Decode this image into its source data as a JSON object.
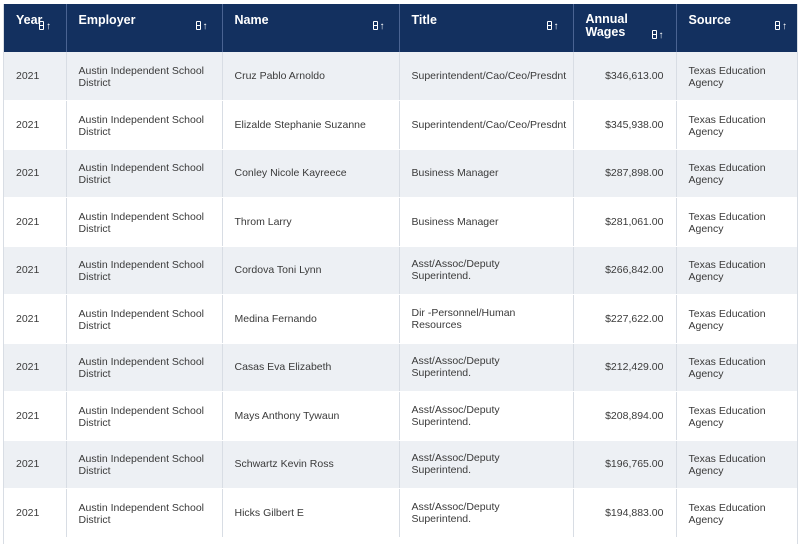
{
  "table": {
    "columns": {
      "year": "Year",
      "employer": "Employer",
      "name": "Name",
      "title": "Title",
      "wages": "Annual Wages",
      "source": "Source"
    },
    "rows": [
      {
        "year": "2021",
        "employer": "Austin Independent School District",
        "name": "Cruz Pablo Arnoldo",
        "title": "Superintendent/Cao/Ceo/Presdnt",
        "wages": "$346,613.00",
        "source": "Texas Education Agency"
      },
      {
        "year": "2021",
        "employer": "Austin Independent School District",
        "name": "Elizalde Stephanie Suzanne",
        "title": "Superintendent/Cao/Ceo/Presdnt",
        "wages": "$345,938.00",
        "source": "Texas Education Agency"
      },
      {
        "year": "2021",
        "employer": "Austin Independent School District",
        "name": "Conley Nicole Kayreece",
        "title": "Business Manager",
        "wages": "$287,898.00",
        "source": "Texas Education Agency"
      },
      {
        "year": "2021",
        "employer": "Austin Independent School District",
        "name": "Throm Larry",
        "title": "Business Manager",
        "wages": "$281,061.00",
        "source": "Texas Education Agency"
      },
      {
        "year": "2021",
        "employer": "Austin Independent School District",
        "name": "Cordova Toni Lynn",
        "title": "Asst/Assoc/Deputy Superintend.",
        "wages": "$266,842.00",
        "source": "Texas Education Agency"
      },
      {
        "year": "2021",
        "employer": "Austin Independent School District",
        "name": "Medina Fernando",
        "title": "Dir -Personnel/Human Resources",
        "wages": "$227,622.00",
        "source": "Texas Education Agency"
      },
      {
        "year": "2021",
        "employer": "Austin Independent School District",
        "name": "Casas Eva Elizabeth",
        "title": "Asst/Assoc/Deputy Superintend.",
        "wages": "$212,429.00",
        "source": "Texas Education Agency"
      },
      {
        "year": "2021",
        "employer": "Austin Independent School District",
        "name": "Mays Anthony Tywaun",
        "title": "Asst/Assoc/Deputy Superintend.",
        "wages": "$208,894.00",
        "source": "Texas Education Agency"
      },
      {
        "year": "2021",
        "employer": "Austin Independent School District",
        "name": "Schwartz Kevin Ross",
        "title": "Asst/Assoc/Deputy Superintend.",
        "wages": "$196,765.00",
        "source": "Texas Education Agency"
      },
      {
        "year": "2021",
        "employer": "Austin Independent School District",
        "name": "Hicks Gilbert E",
        "title": "Asst/Assoc/Deputy Superintend.",
        "wages": "$194,883.00",
        "source": "Texas Education Agency"
      }
    ]
  },
  "icons": {
    "sort": "sort-icon"
  },
  "colors": {
    "header_bg": "#13305f",
    "header_text": "#ffffff",
    "row_alt": "#edf0f4",
    "row": "#ffffff"
  }
}
